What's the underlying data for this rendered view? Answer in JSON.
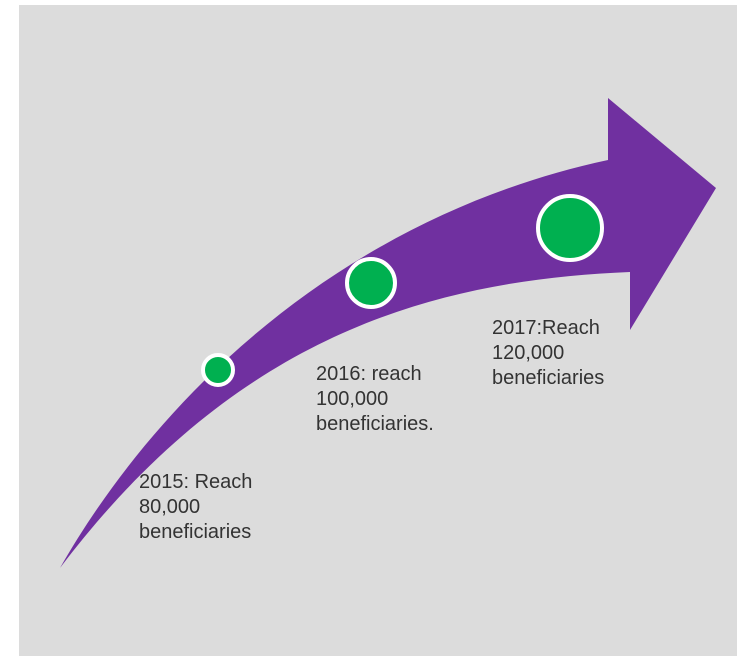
{
  "diagram": {
    "colors": {
      "background": "#dcdcdc",
      "arrow": "#7030a0",
      "marker_fill": "#00b050",
      "marker_ring": "#ffffff",
      "text": "#333333"
    },
    "milestones": [
      {
        "lines": [
          "2015: Reach",
          "80,000",
          "beneficiaries"
        ]
      },
      {
        "lines": [
          "2016: reach",
          "100,000",
          "beneficiaries."
        ]
      },
      {
        "lines": [
          "2017:Reach",
          "120,000",
          "beneficiaries"
        ]
      }
    ]
  }
}
